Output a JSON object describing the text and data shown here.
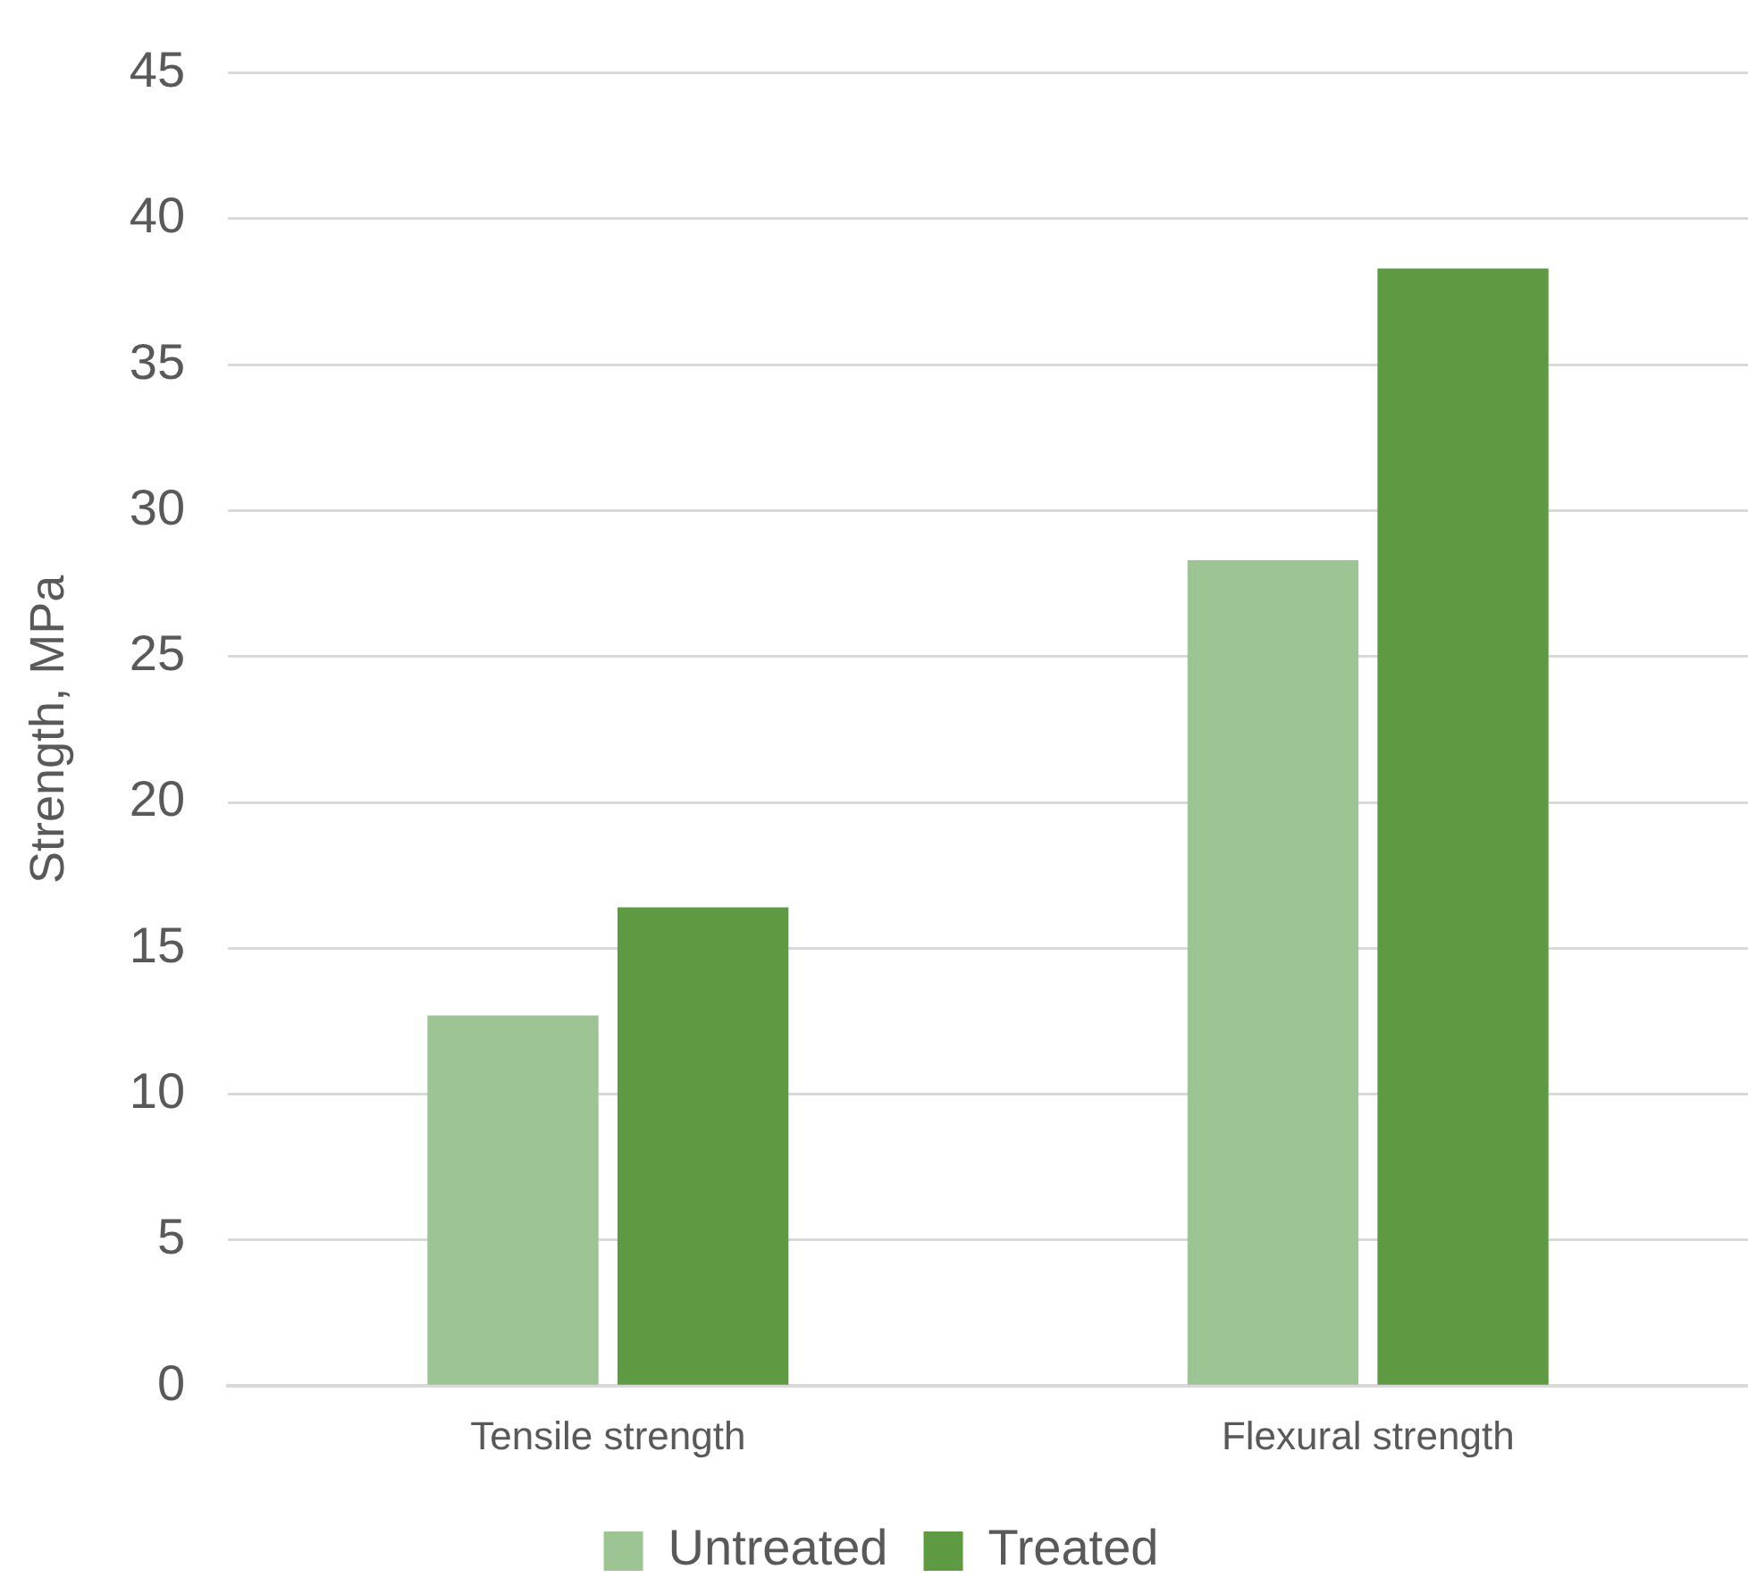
{
  "chart_data": {
    "type": "bar",
    "ylabel": "Strength, MPa",
    "categories": [
      "Tensile strength",
      "Flexural strength"
    ],
    "series": [
      {
        "name": "Untreated",
        "color": "#9dc594",
        "values": [
          12.7,
          28.3
        ]
      },
      {
        "name": "Treated",
        "color": "#5e9a42",
        "values": [
          16.4,
          38.3
        ]
      }
    ],
    "ylim": [
      0,
      45
    ],
    "yticks": [
      0,
      5,
      10,
      15,
      20,
      25,
      30,
      35,
      40,
      45
    ],
    "grid": "y",
    "legend": "bottom"
  }
}
